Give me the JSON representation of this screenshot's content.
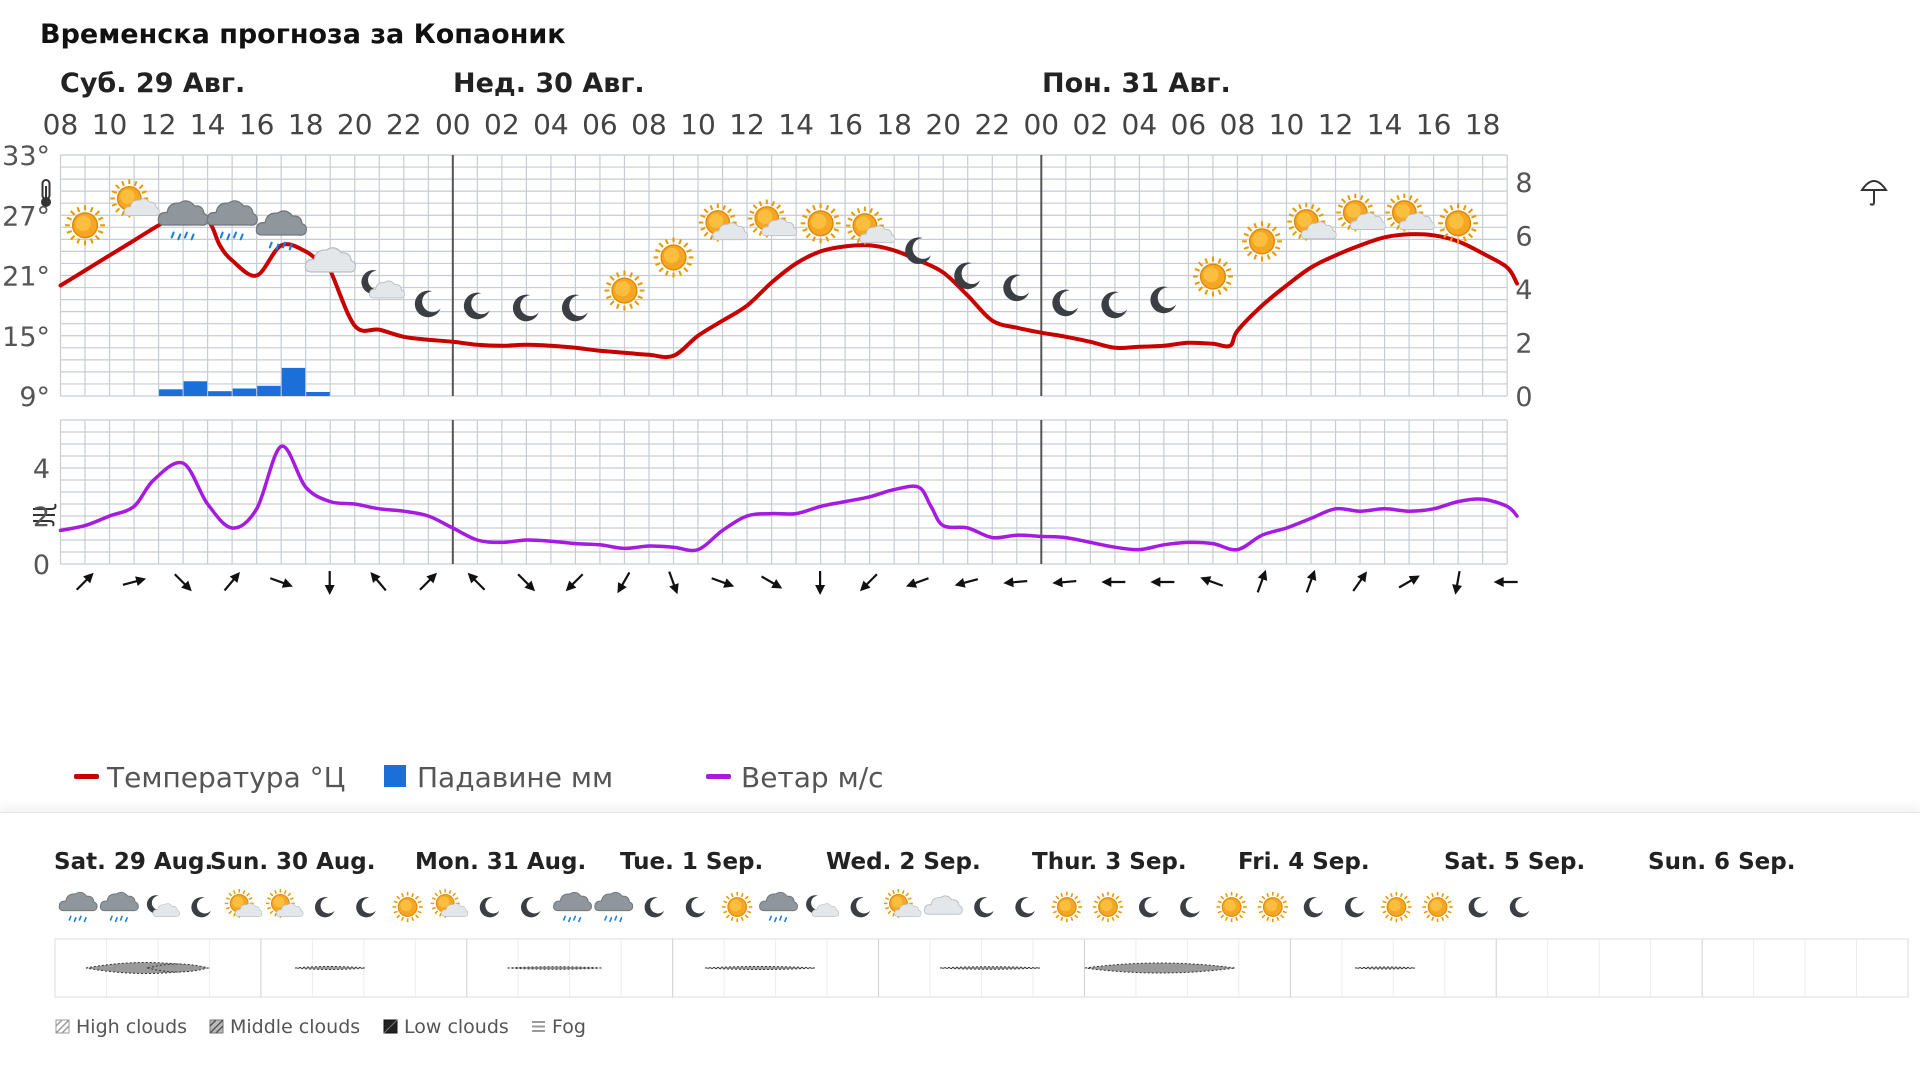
{
  "title": "Временска прогноза за Копаоник",
  "day_labels": [
    "Суб. 29 Авг.",
    "Нед. 30 Авг.",
    "Пон. 31 Авг."
  ],
  "hour_labels": [
    "08",
    "10",
    "12",
    "14",
    "16",
    "18",
    "20",
    "22",
    "00",
    "02",
    "04",
    "06",
    "08",
    "10",
    "12",
    "14",
    "16",
    "18",
    "20",
    "22",
    "00",
    "02",
    "04",
    "06",
    "08",
    "10",
    "12",
    "14",
    "16",
    "18"
  ],
  "icons": {
    "thermometer": "thermometer-icon",
    "umbrella": "umbrella-icon",
    "wind": "wind-icon"
  },
  "legend": {
    "temperature": "Температура °Ц",
    "precipitation": "Падавине мм",
    "wind": "Ветар м/с"
  },
  "colors": {
    "temperature": "#c80000",
    "precipitation": "#1a6fd8",
    "wind": "#a51be0",
    "grid": "#c7ccd3",
    "day_separator": "#555555"
  },
  "chart_data": [
    {
      "type": "line",
      "x_unit": "hour",
      "x_labels_step": 2,
      "temperature": {
        "unit": "°",
        "ylim": [
          9,
          33
        ],
        "yticks": [
          9,
          15,
          21,
          27,
          33
        ],
        "points": [
          [
            0,
            20
          ],
          [
            1,
            21.5
          ],
          [
            2,
            23
          ],
          [
            3,
            24.5
          ],
          [
            4,
            26
          ],
          [
            5,
            27.4
          ],
          [
            6,
            26.5
          ],
          [
            6.5,
            24
          ],
          [
            7,
            22.5
          ],
          [
            8,
            21
          ],
          [
            9,
            24
          ],
          [
            10,
            23.4
          ],
          [
            10.7,
            22
          ],
          [
            11,
            21.5
          ],
          [
            12,
            16
          ],
          [
            13,
            15.6
          ],
          [
            14,
            14.9
          ],
          [
            15,
            14.6
          ],
          [
            16,
            14.4
          ],
          [
            17,
            14.1
          ],
          [
            18,
            14
          ],
          [
            19,
            14.1
          ],
          [
            20,
            14
          ],
          [
            21,
            13.8
          ],
          [
            22,
            13.5
          ],
          [
            23,
            13.3
          ],
          [
            24,
            13.1
          ],
          [
            25,
            13
          ],
          [
            26,
            15
          ],
          [
            27,
            16.5
          ],
          [
            28,
            18
          ],
          [
            29,
            20.3
          ],
          [
            30,
            22.2
          ],
          [
            31,
            23.4
          ],
          [
            32,
            23.9
          ],
          [
            33,
            24
          ],
          [
            34,
            23.5
          ],
          [
            35,
            22.5
          ],
          [
            36,
            21.3
          ],
          [
            37,
            19
          ],
          [
            38,
            16.5
          ],
          [
            39,
            15.8
          ],
          [
            40,
            15.3
          ],
          [
            41,
            14.9
          ],
          [
            42,
            14.4
          ],
          [
            43,
            13.8
          ],
          [
            44,
            13.9
          ],
          [
            45,
            14
          ],
          [
            46,
            14.3
          ],
          [
            47,
            14.2
          ],
          [
            47.7,
            14
          ],
          [
            48,
            15.5
          ],
          [
            49,
            18
          ],
          [
            50,
            20
          ],
          [
            51,
            21.8
          ],
          [
            52,
            23
          ],
          [
            53,
            24
          ],
          [
            54,
            24.8
          ],
          [
            55,
            25.1
          ],
          [
            56,
            25
          ],
          [
            57,
            24.4
          ],
          [
            58,
            23.2
          ],
          [
            59,
            21.8
          ],
          [
            59.4,
            20.2
          ]
        ]
      },
      "precipitation": {
        "unit": "mm",
        "ylim": [
          0,
          9
        ],
        "yticks": [
          0,
          2,
          4,
          6,
          8
        ],
        "bars": [
          [
            4,
            0.25
          ],
          [
            5,
            0.55
          ],
          [
            6,
            0.18
          ],
          [
            7,
            0.28
          ],
          [
            8,
            0.38
          ],
          [
            9,
            1.05
          ],
          [
            10,
            0.15
          ]
        ]
      },
      "wind": {
        "unit": "m/s",
        "ylim": [
          0,
          6
        ],
        "yticks": [
          0,
          2,
          4
        ],
        "points": [
          [
            0,
            1.4
          ],
          [
            1,
            1.6
          ],
          [
            2,
            2
          ],
          [
            3,
            2.4
          ],
          [
            3.8,
            3.5
          ],
          [
            5,
            4.2
          ],
          [
            6,
            2.5
          ],
          [
            7,
            1.5
          ],
          [
            8,
            2.3
          ],
          [
            9,
            4.9
          ],
          [
            10,
            3.2
          ],
          [
            11,
            2.6
          ],
          [
            12,
            2.5
          ],
          [
            13,
            2.3
          ],
          [
            14,
            2.2
          ],
          [
            15,
            2
          ],
          [
            16,
            1.5
          ],
          [
            17,
            1
          ],
          [
            18,
            0.9
          ],
          [
            19,
            1
          ],
          [
            20,
            0.95
          ],
          [
            21,
            0.85
          ],
          [
            22,
            0.8
          ],
          [
            23,
            0.65
          ],
          [
            24,
            0.75
          ],
          [
            25,
            0.7
          ],
          [
            26,
            0.6
          ],
          [
            27,
            1.4
          ],
          [
            28,
            2
          ],
          [
            29,
            2.1
          ],
          [
            30,
            2.1
          ],
          [
            31,
            2.4
          ],
          [
            32,
            2.6
          ],
          [
            33,
            2.8
          ],
          [
            34,
            3.1
          ],
          [
            35,
            3.2
          ],
          [
            35.5,
            2.4
          ],
          [
            36,
            1.6
          ],
          [
            37,
            1.5
          ],
          [
            38,
            1.1
          ],
          [
            39,
            1.2
          ],
          [
            40,
            1.15
          ],
          [
            41,
            1.1
          ],
          [
            42,
            0.9
          ],
          [
            43,
            0.7
          ],
          [
            44,
            0.6
          ],
          [
            45,
            0.8
          ],
          [
            46,
            0.9
          ],
          [
            47,
            0.85
          ],
          [
            48,
            0.6
          ],
          [
            49,
            1.2
          ],
          [
            50,
            1.5
          ],
          [
            51,
            1.9
          ],
          [
            52,
            2.3
          ],
          [
            53,
            2.2
          ],
          [
            54,
            2.3
          ],
          [
            55,
            2.2
          ],
          [
            56,
            2.3
          ],
          [
            57,
            2.6
          ],
          [
            58,
            2.7
          ],
          [
            59,
            2.4
          ],
          [
            59.4,
            2
          ]
        ]
      },
      "wind_direction_arrows_deg": [
        45,
        75,
        135,
        40,
        110,
        180,
        320,
        45,
        315,
        135,
        225,
        210,
        160,
        110,
        120,
        180,
        225,
        250,
        255,
        265,
        265,
        270,
        270,
        290,
        20,
        20,
        35,
        60,
        190,
        270
      ],
      "weather_icons": [
        {
          "x": 1,
          "icon": "sun",
          "temp": 26
        },
        {
          "x": 3,
          "icon": "sun-cloud",
          "temp": 28.2
        },
        {
          "x": 5,
          "icon": "cloud-rain",
          "temp": 26.5
        },
        {
          "x": 7,
          "icon": "cloud-rain",
          "temp": 26.5
        },
        {
          "x": 9,
          "icon": "cloud-rain",
          "temp": 25.5
        },
        {
          "x": 11,
          "icon": "cloud",
          "temp": 22.3
        },
        {
          "x": 13,
          "icon": "moon-cloud",
          "temp": 20
        },
        {
          "x": 15,
          "icon": "moon",
          "temp": 18.2
        },
        {
          "x": 17,
          "icon": "moon",
          "temp": 18
        },
        {
          "x": 19,
          "icon": "moon",
          "temp": 17.8
        },
        {
          "x": 21,
          "icon": "moon",
          "temp": 17.8
        },
        {
          "x": 23,
          "icon": "sun",
          "temp": 19.5
        },
        {
          "x": 25,
          "icon": "sun",
          "temp": 22.8
        },
        {
          "x": 27,
          "icon": "sun-cloud",
          "temp": 25.8
        },
        {
          "x": 29,
          "icon": "sun-cloud",
          "temp": 26.2
        },
        {
          "x": 31,
          "icon": "sun",
          "temp": 26.2
        },
        {
          "x": 33,
          "icon": "sun-cloud",
          "temp": 25.5
        },
        {
          "x": 35,
          "icon": "moon",
          "temp": 23.5
        },
        {
          "x": 37,
          "icon": "moon",
          "temp": 21
        },
        {
          "x": 39,
          "icon": "moon",
          "temp": 19.8
        },
        {
          "x": 41,
          "icon": "moon",
          "temp": 18.3
        },
        {
          "x": 43,
          "icon": "moon",
          "temp": 18.1
        },
        {
          "x": 45,
          "icon": "moon",
          "temp": 18.6
        },
        {
          "x": 47,
          "icon": "sun",
          "temp": 20.9
        },
        {
          "x": 49,
          "icon": "sun",
          "temp": 24.4
        },
        {
          "x": 51,
          "icon": "sun-cloud",
          "temp": 25.9
        },
        {
          "x": 53,
          "icon": "sun-cloud",
          "temp": 26.8
        },
        {
          "x": 55,
          "icon": "sun-cloud",
          "temp": 26.8
        },
        {
          "x": 57,
          "icon": "sun",
          "temp": 26.2
        }
      ]
    }
  ],
  "overview": {
    "days": [
      "Sat. 29 Aug.",
      "Sun. 30 Aug.",
      "Mon. 31 Aug.",
      "Tue. 1 Sep.",
      "Wed. 2 Sep.",
      "Thur. 3 Sep.",
      "Fri. 4 Sep.",
      "Sat. 5 Sep.",
      "Sun. 6 Sep."
    ],
    "icons": [
      "cloud-rain",
      "cloud-rain",
      "moon-cloud",
      "moon",
      "sun-cloud",
      "sun-cloud",
      "moon",
      "moon",
      "sun",
      "sun-cloud",
      "moon",
      "moon",
      "cloud-rain",
      "cloud-rain",
      "moon",
      "moon",
      "sun",
      "cloud-rain",
      "moon-cloud",
      "moon",
      "sun-cloud",
      "cloud",
      "moon",
      "moon",
      "sun",
      "sun",
      "moon",
      "moon",
      "sun",
      "sun",
      "moon",
      "moon",
      "sun",
      "sun",
      "moon",
      "moon"
    ],
    "cloud_legend": {
      "high": "High clouds",
      "middle": "Middle clouds",
      "low": "Low clouds",
      "fog": "Fog"
    }
  }
}
